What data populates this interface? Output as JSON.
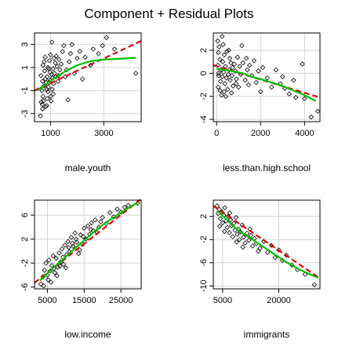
{
  "figure_title": "Component + Residual Plots",
  "chart_data": [
    {
      "type": "scatter",
      "xlabel": "male.youth",
      "xlim": [
        400,
        4400
      ],
      "ylim": [
        -3.7,
        4.0
      ],
      "xticks": [
        1000,
        3000
      ],
      "yticks": [
        -3,
        -1,
        1,
        3
      ],
      "fit_line": [
        [
          400,
          -1.0
        ],
        [
          4400,
          3.3
        ]
      ],
      "smooth_line": [
        [
          500,
          -1.0
        ],
        [
          800,
          -0.5
        ],
        [
          1100,
          0.0
        ],
        [
          1500,
          0.6
        ],
        [
          2000,
          1.2
        ],
        [
          2500,
          1.55
        ],
        [
          3000,
          1.7
        ],
        [
          3500,
          1.75
        ],
        [
          4200,
          1.85
        ]
      ],
      "points": [
        [
          620,
          -3.2
        ],
        [
          700,
          -2.6
        ],
        [
          650,
          -2.0
        ],
        [
          720,
          -1.5
        ],
        [
          680,
          -1.0
        ],
        [
          760,
          -0.6
        ],
        [
          700,
          -0.2
        ],
        [
          640,
          0.3
        ],
        [
          780,
          0.7
        ],
        [
          720,
          1.2
        ],
        [
          800,
          1.9
        ],
        [
          860,
          -2.3
        ],
        [
          880,
          -1.7
        ],
        [
          900,
          -1.1
        ],
        [
          920,
          -0.7
        ],
        [
          950,
          -0.3
        ],
        [
          870,
          0.2
        ],
        [
          980,
          0.6
        ],
        [
          900,
          1.0
        ],
        [
          960,
          1.6
        ],
        [
          1000,
          2.1
        ],
        [
          1050,
          3.2
        ],
        [
          1020,
          -1.9
        ],
        [
          1100,
          -1.3
        ],
        [
          1060,
          -0.9
        ],
        [
          1120,
          -0.4
        ],
        [
          1080,
          0.1
        ],
        [
          1150,
          0.5
        ],
        [
          1100,
          0.9
        ],
        [
          1180,
          1.4
        ],
        [
          1220,
          2.0
        ],
        [
          1250,
          1.1
        ],
        [
          1280,
          -0.2
        ],
        [
          1300,
          0.3
        ],
        [
          1350,
          0.8
        ],
        [
          1400,
          1.3
        ],
        [
          1450,
          2.4
        ],
        [
          1500,
          2.9
        ],
        [
          1550,
          0.2
        ],
        [
          1600,
          0.8
        ],
        [
          1650,
          -1.8
        ],
        [
          1700,
          1.5
        ],
        [
          1750,
          2.2
        ],
        [
          1800,
          3.0
        ],
        [
          1900,
          0.5
        ],
        [
          2000,
          1.8
        ],
        [
          2100,
          2.4
        ],
        [
          2200,
          0.0
        ],
        [
          2300,
          1.9
        ],
        [
          2500,
          1.2
        ],
        [
          2600,
          2.6
        ],
        [
          2800,
          2.2
        ],
        [
          2950,
          2.9
        ],
        [
          3100,
          3.6
        ],
        [
          3400,
          2.6
        ],
        [
          4200,
          0.5
        ],
        [
          860,
          -0.9
        ],
        [
          930,
          0.9
        ],
        [
          1010,
          -1.5
        ],
        [
          1130,
          1.8
        ],
        [
          760,
          1.5
        ],
        [
          810,
          0.0
        ],
        [
          990,
          -0.1
        ],
        [
          1200,
          0.2
        ],
        [
          1320,
          1.7
        ],
        [
          690,
          -2.2
        ],
        [
          740,
          -1.9
        ],
        [
          820,
          -2.4
        ],
        [
          840,
          -0.3
        ],
        [
          1040,
          0.4
        ]
      ]
    },
    {
      "type": "scatter",
      "xlabel": "less.than.high.school",
      "xlim": [
        -150,
        4700
      ],
      "ylim": [
        -4.2,
        3.5
      ],
      "xticks": [
        0,
        2000,
        4000
      ],
      "yticks": [
        -4,
        -2,
        0,
        2
      ],
      "fit_line": [
        [
          -150,
          0.7
        ],
        [
          4700,
          -2.1
        ]
      ],
      "smooth_line": [
        [
          0,
          0.4
        ],
        [
          400,
          0.3
        ],
        [
          800,
          0.15
        ],
        [
          1200,
          0.0
        ],
        [
          1600,
          -0.3
        ],
        [
          2000,
          -0.5
        ],
        [
          2500,
          -0.8
        ],
        [
          3000,
          -1.1
        ],
        [
          3500,
          -1.5
        ],
        [
          4000,
          -1.9
        ],
        [
          4500,
          -2.4
        ]
      ],
      "points": [
        [
          50,
          2.8
        ],
        [
          120,
          2.3
        ],
        [
          80,
          1.8
        ],
        [
          150,
          1.2
        ],
        [
          60,
          0.7
        ],
        [
          200,
          0.3
        ],
        [
          100,
          -0.2
        ],
        [
          180,
          -0.7
        ],
        [
          70,
          -1.2
        ],
        [
          220,
          -1.9
        ],
        [
          250,
          3.2
        ],
        [
          300,
          2.5
        ],
        [
          350,
          1.6
        ],
        [
          280,
          1.0
        ],
        [
          400,
          0.6
        ],
        [
          320,
          0.1
        ],
        [
          450,
          -0.4
        ],
        [
          380,
          -0.9
        ],
        [
          500,
          -1.4
        ],
        [
          420,
          -2.0
        ],
        [
          550,
          2.0
        ],
        [
          600,
          1.3
        ],
        [
          650,
          0.9
        ],
        [
          580,
          0.3
        ],
        [
          700,
          -0.2
        ],
        [
          620,
          -0.6
        ],
        [
          750,
          -1.1
        ],
        [
          680,
          -1.7
        ],
        [
          800,
          0.8
        ],
        [
          850,
          0.2
        ],
        [
          900,
          -0.5
        ],
        [
          950,
          1.4
        ],
        [
          1000,
          -1.2
        ],
        [
          1050,
          0.6
        ],
        [
          1100,
          -0.1
        ],
        [
          1150,
          2.4
        ],
        [
          1200,
          0.9
        ],
        [
          1300,
          -0.6
        ],
        [
          1350,
          1.3
        ],
        [
          1400,
          0.3
        ],
        [
          1450,
          -1.0
        ],
        [
          1500,
          0.7
        ],
        [
          1600,
          -0.2
        ],
        [
          1700,
          1.1
        ],
        [
          1800,
          -0.8
        ],
        [
          1900,
          0.2
        ],
        [
          2000,
          -1.6
        ],
        [
          2100,
          0.5
        ],
        [
          2300,
          -0.4
        ],
        [
          2500,
          -1.2
        ],
        [
          2700,
          0.3
        ],
        [
          2900,
          -0.9
        ],
        [
          3000,
          -0.3
        ],
        [
          3100,
          -1.3
        ],
        [
          3300,
          -1.8
        ],
        [
          3500,
          -0.6
        ],
        [
          3600,
          -2.1
        ],
        [
          3900,
          0.8
        ],
        [
          4000,
          -2.2
        ],
        [
          4300,
          -3.8
        ],
        [
          4600,
          -3.3
        ],
        [
          90,
          0.0
        ],
        [
          160,
          -1.5
        ],
        [
          260,
          -0.3
        ],
        [
          340,
          -1.6
        ],
        [
          470,
          1.9
        ],
        [
          530,
          -0.1
        ],
        [
          720,
          0.5
        ],
        [
          880,
          -0.9
        ]
      ]
    },
    {
      "type": "scatter",
      "xlabel": "low.income",
      "xlim": [
        1500,
        30500
      ],
      "ylim": [
        -6.3,
        8.5
      ],
      "xticks": [
        5000,
        15000,
        25000
      ],
      "yticks": [
        -6,
        -2,
        2,
        6
      ],
      "fit_line": [
        [
          1500,
          -5.3
        ],
        [
          30500,
          8.7
        ]
      ],
      "smooth_line": [
        [
          3000,
          -4.9
        ],
        [
          6000,
          -3.1
        ],
        [
          9000,
          -1.5
        ],
        [
          12000,
          0.2
        ],
        [
          15000,
          1.8
        ],
        [
          18000,
          3.4
        ],
        [
          21000,
          4.8
        ],
        [
          24000,
          6.0
        ],
        [
          27000,
          7.2
        ],
        [
          29500,
          8.1
        ]
      ],
      "points": [
        [
          3200,
          -5.5
        ],
        [
          3800,
          -4.3
        ],
        [
          4200,
          -3.2
        ],
        [
          4600,
          -2.0
        ],
        [
          5000,
          -4.0
        ],
        [
          5400,
          -1.5
        ],
        [
          5800,
          -3.3
        ],
        [
          6200,
          -2.4
        ],
        [
          6600,
          -0.8
        ],
        [
          7000,
          -3.6
        ],
        [
          7400,
          -1.2
        ],
        [
          7800,
          -2.7
        ],
        [
          8200,
          -0.3
        ],
        [
          8600,
          -1.8
        ],
        [
          9000,
          0.4
        ],
        [
          9400,
          -2.2
        ],
        [
          9800,
          1.0
        ],
        [
          10200,
          -0.6
        ],
        [
          10600,
          1.6
        ],
        [
          11000,
          -0.1
        ],
        [
          11500,
          2.3
        ],
        [
          12000,
          0.8
        ],
        [
          12500,
          3.0
        ],
        [
          13000,
          1.5
        ],
        [
          13500,
          -0.4
        ],
        [
          14000,
          2.7
        ],
        [
          14500,
          1.1
        ],
        [
          15000,
          3.8
        ],
        [
          15500,
          2.0
        ],
        [
          16000,
          4.2
        ],
        [
          16500,
          2.8
        ],
        [
          17000,
          4.7
        ],
        [
          17500,
          3.4
        ],
        [
          18000,
          5.2
        ],
        [
          19000,
          4.0
        ],
        [
          20000,
          5.6
        ],
        [
          21000,
          4.6
        ],
        [
          22000,
          6.4
        ],
        [
          23000,
          5.7
        ],
        [
          24000,
          7.0
        ],
        [
          25000,
          6.5
        ],
        [
          26000,
          7.3
        ],
        [
          27000,
          7.6
        ],
        [
          29500,
          8.0
        ],
        [
          4000,
          -5.8
        ],
        [
          5200,
          -4.8
        ],
        [
          6000,
          -5.2
        ],
        [
          6800,
          -2.9
        ],
        [
          7600,
          -4.1
        ],
        [
          8400,
          -2.5
        ],
        [
          9200,
          -1.0
        ],
        [
          10000,
          -2.8
        ],
        [
          10800,
          0.6
        ],
        [
          11800,
          1.3
        ],
        [
          12800,
          2.0
        ],
        [
          13800,
          0.2
        ],
        [
          14800,
          2.4
        ],
        [
          16800,
          3.6
        ],
        [
          18500,
          3.1
        ],
        [
          19500,
          4.9
        ]
      ]
    },
    {
      "type": "scatter",
      "xlabel": "immigrants",
      "xlim": [
        2500,
        31000
      ],
      "ylim": [
        -10.5,
        4.8
      ],
      "xticks": [
        5000,
        20000
      ],
      "yticks": [
        -10,
        -6,
        -2,
        2
      ],
      "fit_line": [
        [
          2500,
          3.8
        ],
        [
          31000,
          -8.7
        ]
      ],
      "smooth_line": [
        [
          3500,
          3.0
        ],
        [
          6000,
          1.5
        ],
        [
          8000,
          0.2
        ],
        [
          10000,
          -0.8
        ],
        [
          13000,
          -2.0
        ],
        [
          16000,
          -3.3
        ],
        [
          19000,
          -4.6
        ],
        [
          22000,
          -5.9
        ],
        [
          25000,
          -7.0
        ],
        [
          28000,
          -7.9
        ],
        [
          30500,
          -8.6
        ]
      ],
      "points": [
        [
          3500,
          3.8
        ],
        [
          3800,
          2.5
        ],
        [
          4100,
          3.2
        ],
        [
          4400,
          1.6
        ],
        [
          4700,
          2.8
        ],
        [
          5000,
          0.9
        ],
        [
          5300,
          2.2
        ],
        [
          5600,
          3.5
        ],
        [
          5900,
          1.2
        ],
        [
          6200,
          0.1
        ],
        [
          6500,
          2.0
        ],
        [
          6800,
          -0.8
        ],
        [
          7100,
          1.4
        ],
        [
          7400,
          0.4
        ],
        [
          7700,
          -1.5
        ],
        [
          8000,
          0.8
        ],
        [
          8300,
          -0.4
        ],
        [
          8600,
          1.8
        ],
        [
          8900,
          -1.1
        ],
        [
          9200,
          -0.2
        ],
        [
          9500,
          -2.0
        ],
        [
          9800,
          -0.7
        ],
        [
          10200,
          0.5
        ],
        [
          10600,
          -1.6
        ],
        [
          11000,
          -2.6
        ],
        [
          11500,
          -0.9
        ],
        [
          12000,
          -2.1
        ],
        [
          12500,
          -1.3
        ],
        [
          13000,
          -3.1
        ],
        [
          13500,
          -1.8
        ],
        [
          14000,
          -2.7
        ],
        [
          15000,
          -3.5
        ],
        [
          16000,
          -2.3
        ],
        [
          17000,
          -4.2
        ],
        [
          18000,
          -3.0
        ],
        [
          19000,
          -5.1
        ],
        [
          20000,
          -3.8
        ],
        [
          21000,
          -5.6
        ],
        [
          22000,
          -4.7
        ],
        [
          23500,
          -6.4
        ],
        [
          25000,
          -7.2
        ],
        [
          27000,
          -8.0
        ],
        [
          29500,
          -9.8
        ],
        [
          4200,
          0.3
        ],
        [
          5500,
          -0.6
        ],
        [
          6900,
          2.6
        ],
        [
          8700,
          -2.4
        ],
        [
          10400,
          -3.3
        ],
        [
          12300,
          -0.2
        ],
        [
          14500,
          -4.0
        ]
      ]
    }
  ]
}
